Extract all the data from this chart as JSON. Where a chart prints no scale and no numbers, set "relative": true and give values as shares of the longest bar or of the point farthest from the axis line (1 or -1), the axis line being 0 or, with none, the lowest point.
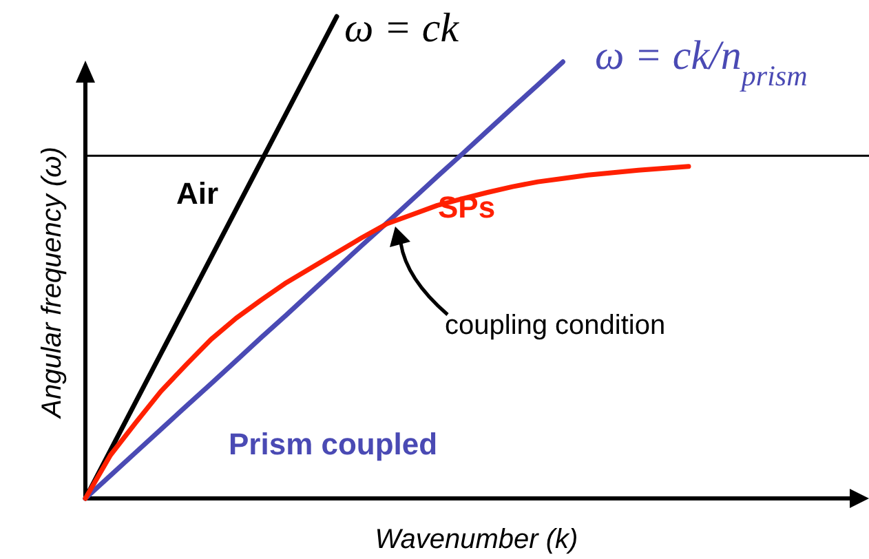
{
  "chart_data": {
    "type": "line",
    "relative": true,
    "xlabel": "Wavenumber  (k)",
    "ylabel": "Angular frequency  (ω)",
    "categories": [
      null,
      null,
      null,
      null,
      null,
      null,
      null,
      null,
      null,
      null,
      null,
      null,
      null,
      null,
      null,
      null,
      null,
      null,
      null,
      null,
      null,
      null,
      null,
      null,
      null
    ],
    "series": [
      {
        "name": "Air",
        "color": "#000000",
        "values": [
          0,
          0.1,
          0.2,
          0.3,
          0.4,
          0.5,
          0.6,
          0.7,
          0.8,
          0.9,
          1,
          null,
          null,
          null,
          null,
          null,
          null,
          null,
          null,
          null,
          null,
          null,
          null,
          null,
          null
        ]
      },
      {
        "name": "Prism coupled",
        "color": "#4a4ab4",
        "values": [
          0,
          0.0477,
          0.0954,
          0.143,
          0.191,
          0.238,
          0.286,
          0.334,
          0.381,
          0.429,
          0.477,
          0.525,
          0.572,
          0.62,
          0.668,
          0.715,
          0.763,
          0.811,
          0.858,
          0.906,
          null,
          null,
          null,
          null,
          null
        ]
      },
      {
        "name": "SPs",
        "color": "#ff2000",
        "values": [
          0,
          0.09,
          0.157,
          0.222,
          0.277,
          0.33,
          0.374,
          0.412,
          0.448,
          0.479,
          0.51,
          0.541,
          0.57,
          0.589,
          0.608,
          0.622,
          0.635,
          0.647,
          0.657,
          0.664,
          0.671,
          0.676,
          0.681,
          0.685,
          0.689
        ]
      }
    ],
    "ref_lines": [
      {
        "axis": "y",
        "value": 0.711,
        "color": "#000000"
      }
    ],
    "annotations": [
      "ω = ck",
      "ω = ck/n$_{prism}$",
      "coupling condition"
    ],
    "legend": false,
    "line_style": "solid",
    "marker": "none"
  }
}
